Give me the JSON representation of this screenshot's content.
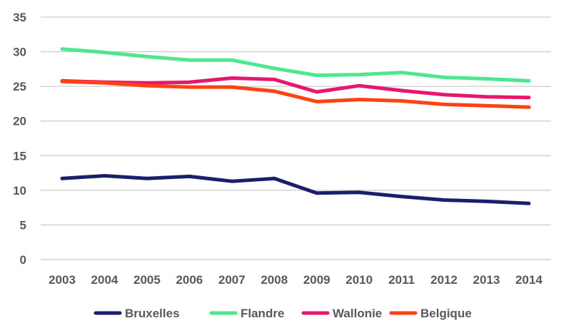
{
  "chart_data": {
    "type": "line",
    "title": "",
    "xlabel": "",
    "ylabel": "",
    "x": [
      "2003",
      "2004",
      "2005",
      "2006",
      "2007",
      "2008",
      "2009",
      "2010",
      "2011",
      "2012",
      "2013",
      "2014"
    ],
    "ylim": [
      0,
      35
    ],
    "yticks": [
      0,
      5,
      10,
      15,
      20,
      25,
      30,
      35
    ],
    "grid": true,
    "legend_position": "bottom",
    "series": [
      {
        "name": "Bruxelles",
        "color": "#1b1f6b",
        "values": [
          11.7,
          12.1,
          11.7,
          12.0,
          11.3,
          11.7,
          9.6,
          9.7,
          9.1,
          8.6,
          8.4,
          8.1
        ]
      },
      {
        "name": "Flandre",
        "color": "#4ee68e",
        "values": [
          30.4,
          29.9,
          29.3,
          28.8,
          28.8,
          27.6,
          26.6,
          26.7,
          27.0,
          26.3,
          26.1,
          25.8
        ]
      },
      {
        "name": "Wallonie",
        "color": "#e8176e",
        "values": [
          25.8,
          25.6,
          25.5,
          25.6,
          26.2,
          26.0,
          24.2,
          25.1,
          24.4,
          23.8,
          23.5,
          23.4
        ]
      },
      {
        "name": "Belgique",
        "color": "#ff4212",
        "values": [
          25.7,
          25.5,
          25.1,
          24.9,
          24.9,
          24.3,
          22.8,
          23.1,
          22.9,
          22.4,
          22.2,
          22.0
        ]
      }
    ]
  }
}
